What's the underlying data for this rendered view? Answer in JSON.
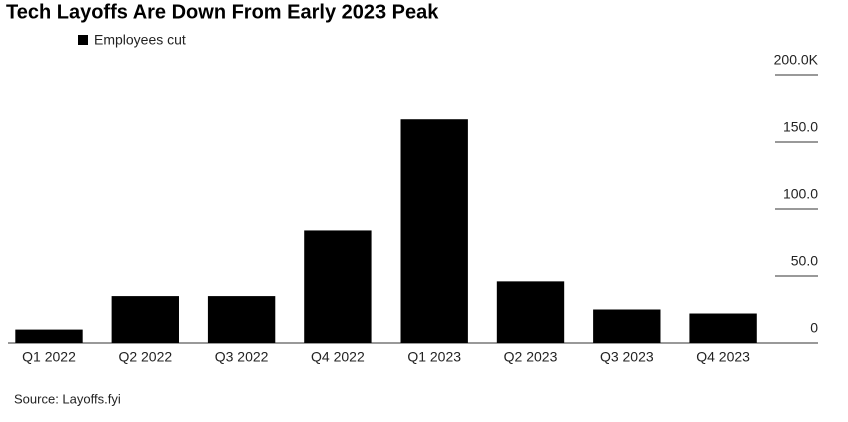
{
  "chart_data": {
    "type": "bar",
    "title": "Tech Layoffs Are Down From Early 2023 Peak",
    "categories": [
      "Q1 2022",
      "Q2 2022",
      "Q3 2022",
      "Q4 2022",
      "Q1 2023",
      "Q2 2023",
      "Q3 2023",
      "Q4 2023"
    ],
    "series": [
      {
        "name": "Employees cut",
        "color": "#000000",
        "values": [
          10,
          35,
          35,
          84,
          167,
          46,
          25,
          22
        ]
      }
    ],
    "ylim": [
      0,
      200
    ],
    "yticks": [
      0,
      {
        "value": 50,
        "label": "50.0"
      },
      {
        "value": 100,
        "label": "100.0"
      },
      {
        "value": 150,
        "label": "150.0"
      },
      {
        "value": 200,
        "label": "200.0K"
      }
    ],
    "grid": true,
    "legend": "top-left",
    "source": "Source: Layoffs.fyi"
  }
}
